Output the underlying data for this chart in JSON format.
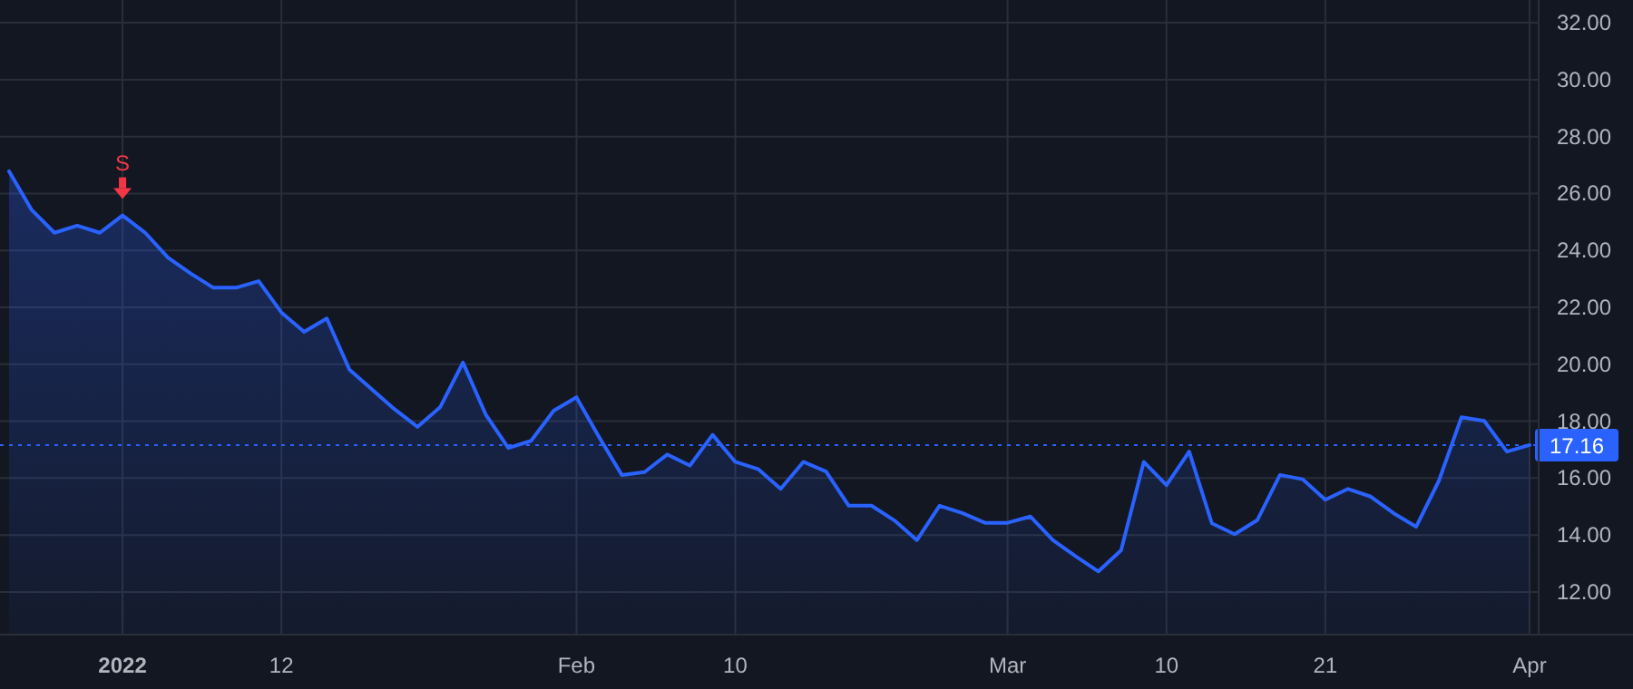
{
  "chart_data": {
    "type": "area",
    "categories": [
      null,
      null,
      null,
      null,
      null,
      "2022",
      null,
      null,
      null,
      null,
      null,
      null,
      "12",
      null,
      null,
      null,
      null,
      null,
      null,
      null,
      null,
      null,
      null,
      null,
      null,
      "Feb",
      null,
      null,
      null,
      null,
      null,
      null,
      "10",
      null,
      null,
      null,
      null,
      null,
      null,
      null,
      null,
      null,
      null,
      null,
      "Mar",
      null,
      null,
      null,
      null,
      null,
      null,
      "10",
      null,
      null,
      null,
      null,
      null,
      null,
      "21",
      null,
      null,
      null,
      null,
      null,
      null,
      null,
      null,
      "Apr"
    ],
    "series": [
      {
        "color": "#2962ff",
        "values": [
          26.78,
          25.42,
          24.62,
          24.87,
          24.62,
          25.23,
          24.62,
          23.75,
          23.19,
          22.69,
          22.69,
          22.92,
          21.82,
          21.14,
          21.61,
          19.81,
          19.11,
          18.41,
          17.8,
          18.5,
          20.06,
          18.24,
          17.06,
          17.31,
          18.37,
          18.84,
          17.44,
          16.11,
          16.21,
          16.83,
          16.44,
          17.52,
          16.57,
          16.32,
          15.62,
          16.57,
          16.23,
          15.03,
          15.03,
          14.52,
          13.82,
          15.03,
          14.77,
          14.43,
          14.43,
          14.65,
          13.82,
          13.25,
          12.72,
          13.46,
          16.57,
          15.75,
          16.93,
          14.41,
          14.03,
          14.52,
          16.11,
          15.96,
          15.24,
          15.62,
          15.35,
          14.77,
          14.29,
          15.9,
          18.14,
          18.01,
          16.93,
          17.16
        ]
      }
    ],
    "ylim": [
      10.5,
      32.8
    ],
    "yticks": [
      {
        "value": 12,
        "label": "12.00"
      },
      {
        "value": 14,
        "label": "14.00"
      },
      {
        "value": 16,
        "label": "16.00"
      },
      {
        "value": 18,
        "label": "18.00"
      },
      {
        "value": 20,
        "label": "20.00"
      },
      {
        "value": 22,
        "label": "22.00"
      },
      {
        "value": 24,
        "label": "24.00"
      },
      {
        "value": 26,
        "label": "26.00"
      },
      {
        "value": 28,
        "label": "28.00"
      },
      {
        "value": 30,
        "label": "30.00"
      },
      {
        "value": 32,
        "label": "32.00"
      }
    ],
    "grid": true,
    "ref_lines": [
      {
        "axis": "y",
        "value": 17.16,
        "label": "17.16",
        "color": "#2962ff",
        "line_style": "dotted"
      }
    ],
    "annotations": [
      {
        "text": "S",
        "x": "2022",
        "y": 25.23
      }
    ]
  }
}
